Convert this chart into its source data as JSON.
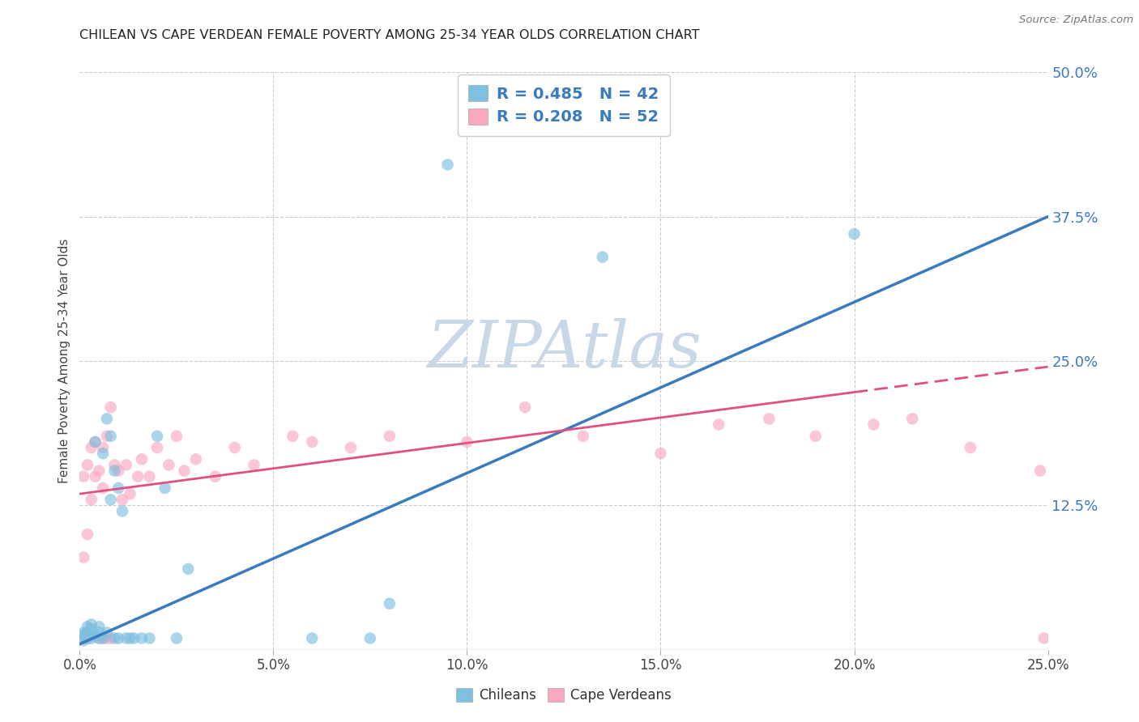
{
  "title": "CHILEAN VS CAPE VERDEAN FEMALE POVERTY AMONG 25-34 YEAR OLDS CORRELATION CHART",
  "source": "Source: ZipAtlas.com",
  "ylabel": "Female Poverty Among 25-34 Year Olds",
  "xlim": [
    0.0,
    0.25
  ],
  "ylim": [
    0.0,
    0.5
  ],
  "background_color": "#ffffff",
  "grid_color": "#cccccc",
  "chilean_color": "#7fbfdf",
  "capeverdean_color": "#f9a8c0",
  "chilean_line_color": "#3a7bbf",
  "capeverdean_line_color": "#e05080",
  "watermark": "ZIPAtlas",
  "watermark_color": "#c8d8e8",
  "legend_text_color": "#3a7bbf",
  "legend_R_chilean": "R = 0.485",
  "legend_N_chilean": "N = 42",
  "legend_R_capeverdean": "R = 0.208",
  "legend_N_capeverdean": "N = 52",
  "chilean_line_x0": 0.0,
  "chilean_line_y0": 0.005,
  "chilean_line_x1": 0.25,
  "chilean_line_y1": 0.375,
  "capeverdean_line_x0": 0.0,
  "capeverdean_line_y0": 0.135,
  "capeverdean_line_x1": 0.25,
  "capeverdean_line_y1": 0.245,
  "chilean_scatter_x": [
    0.001,
    0.001,
    0.001,
    0.001,
    0.002,
    0.002,
    0.002,
    0.002,
    0.003,
    0.003,
    0.003,
    0.004,
    0.004,
    0.005,
    0.005,
    0.005,
    0.006,
    0.006,
    0.007,
    0.007,
    0.008,
    0.008,
    0.009,
    0.009,
    0.01,
    0.01,
    0.011,
    0.012,
    0.013,
    0.014,
    0.016,
    0.018,
    0.02,
    0.022,
    0.025,
    0.028,
    0.06,
    0.075,
    0.08,
    0.135,
    0.095,
    0.2
  ],
  "chilean_scatter_y": [
    0.01,
    0.013,
    0.008,
    0.015,
    0.01,
    0.012,
    0.015,
    0.02,
    0.01,
    0.018,
    0.022,
    0.012,
    0.18,
    0.01,
    0.015,
    0.02,
    0.01,
    0.17,
    0.015,
    0.2,
    0.13,
    0.185,
    0.01,
    0.155,
    0.14,
    0.01,
    0.12,
    0.01,
    0.01,
    0.01,
    0.01,
    0.01,
    0.185,
    0.14,
    0.01,
    0.07,
    0.01,
    0.01,
    0.04,
    0.34,
    0.42,
    0.36
  ],
  "capeverdean_scatter_x": [
    0.001,
    0.001,
    0.001,
    0.002,
    0.002,
    0.002,
    0.003,
    0.003,
    0.003,
    0.004,
    0.004,
    0.005,
    0.005,
    0.006,
    0.006,
    0.006,
    0.007,
    0.007,
    0.008,
    0.008,
    0.009,
    0.01,
    0.011,
    0.012,
    0.013,
    0.015,
    0.016,
    0.018,
    0.02,
    0.023,
    0.025,
    0.027,
    0.03,
    0.035,
    0.04,
    0.045,
    0.055,
    0.06,
    0.07,
    0.08,
    0.1,
    0.115,
    0.13,
    0.15,
    0.165,
    0.178,
    0.19,
    0.205,
    0.215,
    0.23,
    0.248,
    0.249
  ],
  "capeverdean_scatter_y": [
    0.01,
    0.08,
    0.15,
    0.01,
    0.1,
    0.16,
    0.012,
    0.13,
    0.175,
    0.15,
    0.18,
    0.01,
    0.155,
    0.01,
    0.14,
    0.175,
    0.01,
    0.185,
    0.01,
    0.21,
    0.16,
    0.155,
    0.13,
    0.16,
    0.135,
    0.15,
    0.165,
    0.15,
    0.175,
    0.16,
    0.185,
    0.155,
    0.165,
    0.15,
    0.175,
    0.16,
    0.185,
    0.18,
    0.175,
    0.185,
    0.18,
    0.21,
    0.185,
    0.17,
    0.195,
    0.2,
    0.185,
    0.195,
    0.2,
    0.175,
    0.155,
    0.01
  ]
}
